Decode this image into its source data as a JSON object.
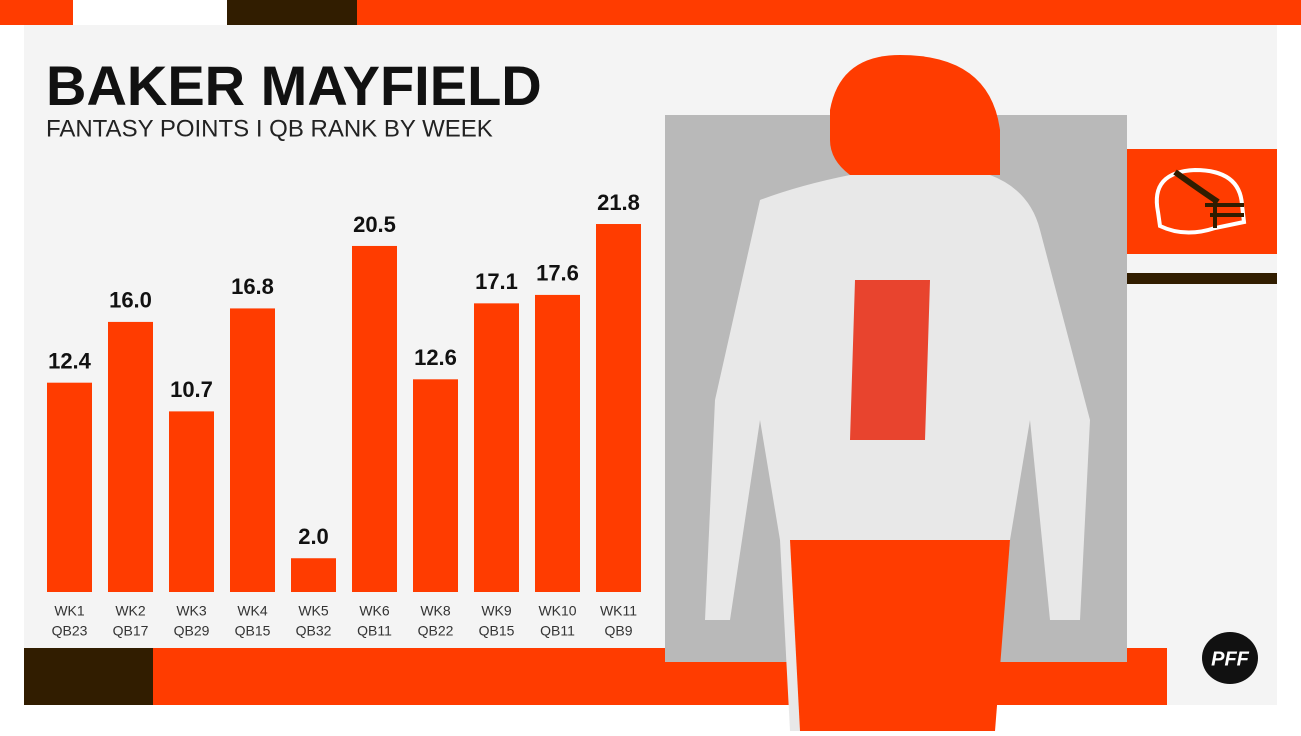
{
  "chart_data": {
    "type": "bar",
    "title": "BAKER MAYFIELD",
    "subtitle": "FANTASY POINTS I QB RANK BY WEEK",
    "categories": [
      "WK1",
      "WK2",
      "WK3",
      "WK4",
      "WK5",
      "WK6",
      "WK8",
      "WK9",
      "WK10",
      "WK11"
    ],
    "ranks": [
      "QB23",
      "QB17",
      "QB29",
      "QB15",
      "QB32",
      "QB11",
      "QB22",
      "QB15",
      "QB11",
      "QB9"
    ],
    "values": [
      12.4,
      16.0,
      10.7,
      16.8,
      2.0,
      20.5,
      12.6,
      17.1,
      17.6,
      21.8
    ],
    "value_labels": [
      "12.4",
      "16.0",
      "10.7",
      "16.8",
      "2.0",
      "20.5",
      "12.6",
      "17.1",
      "17.6",
      "21.8"
    ],
    "color": "#ff3c00",
    "logo": "PFF"
  }
}
